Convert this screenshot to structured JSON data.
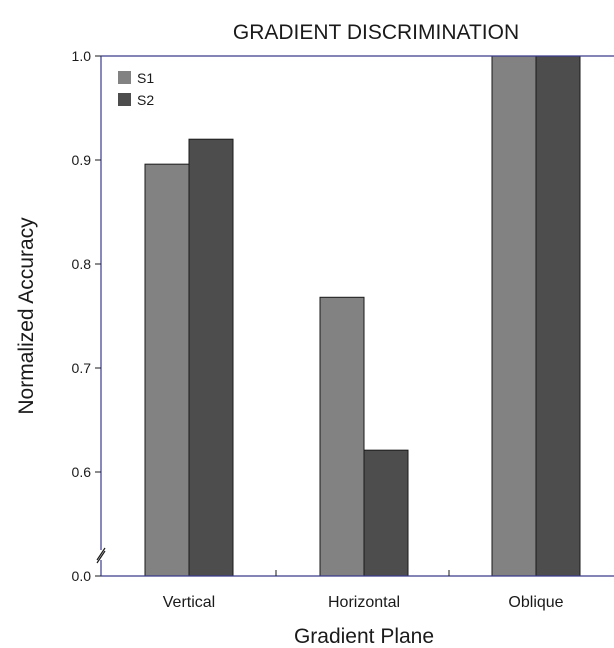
{
  "chart_data": {
    "type": "bar",
    "title": "GRADIENT DISCRIMINATION",
    "xlabel": "Gradient Plane",
    "ylabel": "Normalized Accuracy",
    "categories": [
      "Vertical",
      "Horizontal",
      "Oblique"
    ],
    "series": [
      {
        "name": "S1",
        "color": "#828282",
        "values": [
          0.896,
          0.768,
          1.0
        ]
      },
      {
        "name": "S2",
        "color": "#4d4d4d",
        "values": [
          0.92,
          0.621,
          1.0
        ]
      }
    ],
    "yticks": [
      {
        "value": 0.0,
        "label": "0.0"
      },
      {
        "value": 0.6,
        "label": "0.6"
      },
      {
        "value": 0.7,
        "label": "0.7"
      },
      {
        "value": 0.8,
        "label": "0.8"
      },
      {
        "value": 0.9,
        "label": "0.9"
      },
      {
        "value": 1.0,
        "label": "1.0"
      }
    ],
    "ylim": [
      0.55,
      1.0
    ],
    "axis_break": true,
    "legend_position": "top-left",
    "grid": false,
    "axis_color": "#3a3a8c"
  }
}
